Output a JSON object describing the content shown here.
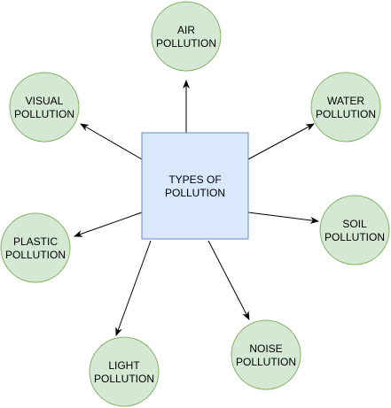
{
  "colors": {
    "center_fill": "#dae8fc",
    "center_stroke": "#6c8ebf",
    "node_fill": "#d5e8d4",
    "node_stroke": "#82b366",
    "edge": "#000000"
  },
  "center": {
    "line1": "TYPES OF",
    "line2": "POLLUTION"
  },
  "nodes": [
    {
      "id": "air",
      "line1": "AIR",
      "line2": "POLLUTION"
    },
    {
      "id": "water",
      "line1": "WATER",
      "line2": "POLLUTION"
    },
    {
      "id": "soil",
      "line1": "SOIL",
      "line2": "POLLUTION"
    },
    {
      "id": "noise",
      "line1": "NOISE",
      "line2": "POLLUTION"
    },
    {
      "id": "light",
      "line1": "LIGHT",
      "line2": "POLLUTION"
    },
    {
      "id": "plastic",
      "line1": "PLASTIC",
      "line2": "POLLUTION"
    },
    {
      "id": "visual",
      "line1": "VISUAL",
      "line2": "POLLUTION"
    }
  ]
}
